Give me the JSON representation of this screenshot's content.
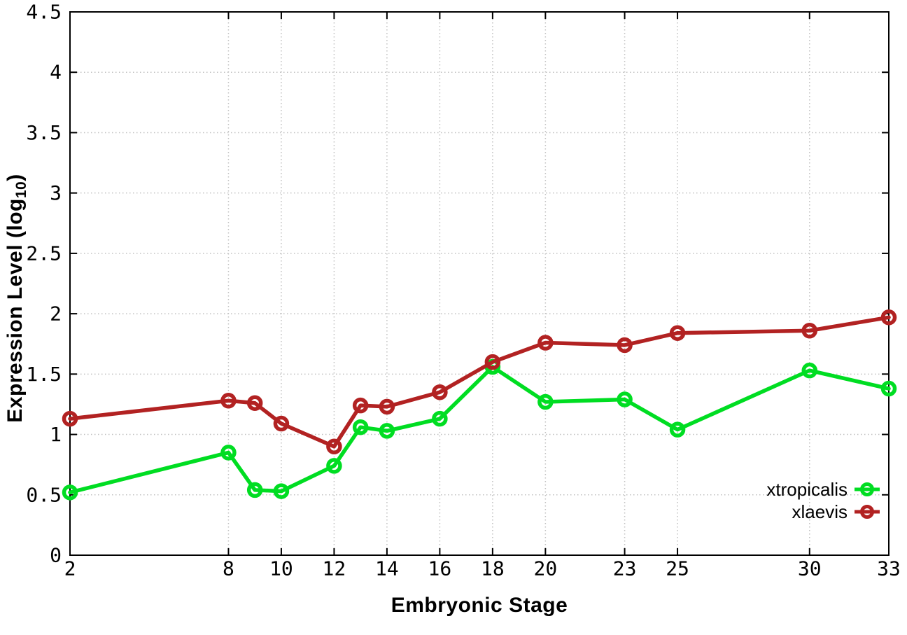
{
  "figure": {
    "xlabel": "Embryonic Stage",
    "ylabel_main": "Expression Level (log",
    "ylabel_sub": "10",
    "ylabel_close": ")"
  },
  "style": {
    "background": "#ffffff",
    "axis_color": "#000000",
    "grid_color": "#c0c0c0",
    "text_color": "#000000"
  },
  "chart_data": {
    "type": "line",
    "title": "",
    "xlabel": "Embryonic Stage",
    "ylabel": "Expression Level (log10)",
    "xlim": [
      2,
      33
    ],
    "ylim": [
      0,
      4.5
    ],
    "grid": "dotted",
    "legend_position": "inside-bottom-right",
    "x": [
      2,
      8,
      9,
      10,
      12,
      13,
      14,
      16,
      18,
      20,
      23,
      25,
      30,
      33
    ],
    "xtick_values": [
      2,
      8,
      10,
      12,
      14,
      16,
      18,
      20,
      23,
      25,
      30,
      33
    ],
    "xtick_labels": [
      "2",
      "8",
      "10",
      "12",
      "14",
      "16",
      "18",
      "20",
      "23",
      "25",
      "30",
      "33"
    ],
    "ytick_values": [
      0,
      0.5,
      1,
      1.5,
      2,
      2.5,
      3,
      3.5,
      4,
      4.5
    ],
    "ytick_labels": [
      "0",
      "0.5",
      "1",
      "1.5",
      "2",
      "2.5",
      "3",
      "3.5",
      "4",
      "4.5"
    ],
    "series": [
      {
        "name": "xtropicalis",
        "color": "#00dd22",
        "marker": "open-circle",
        "values": [
          0.52,
          0.85,
          0.54,
          0.53,
          0.74,
          1.06,
          1.03,
          1.13,
          1.56,
          1.27,
          1.29,
          1.04,
          1.53,
          1.38
        ]
      },
      {
        "name": "xlaevis",
        "color": "#b22222",
        "marker": "open-circle",
        "values": [
          1.13,
          1.28,
          1.26,
          1.09,
          0.9,
          1.24,
          1.23,
          1.35,
          1.6,
          1.76,
          1.74,
          1.84,
          1.86,
          1.97
        ]
      }
    ]
  }
}
